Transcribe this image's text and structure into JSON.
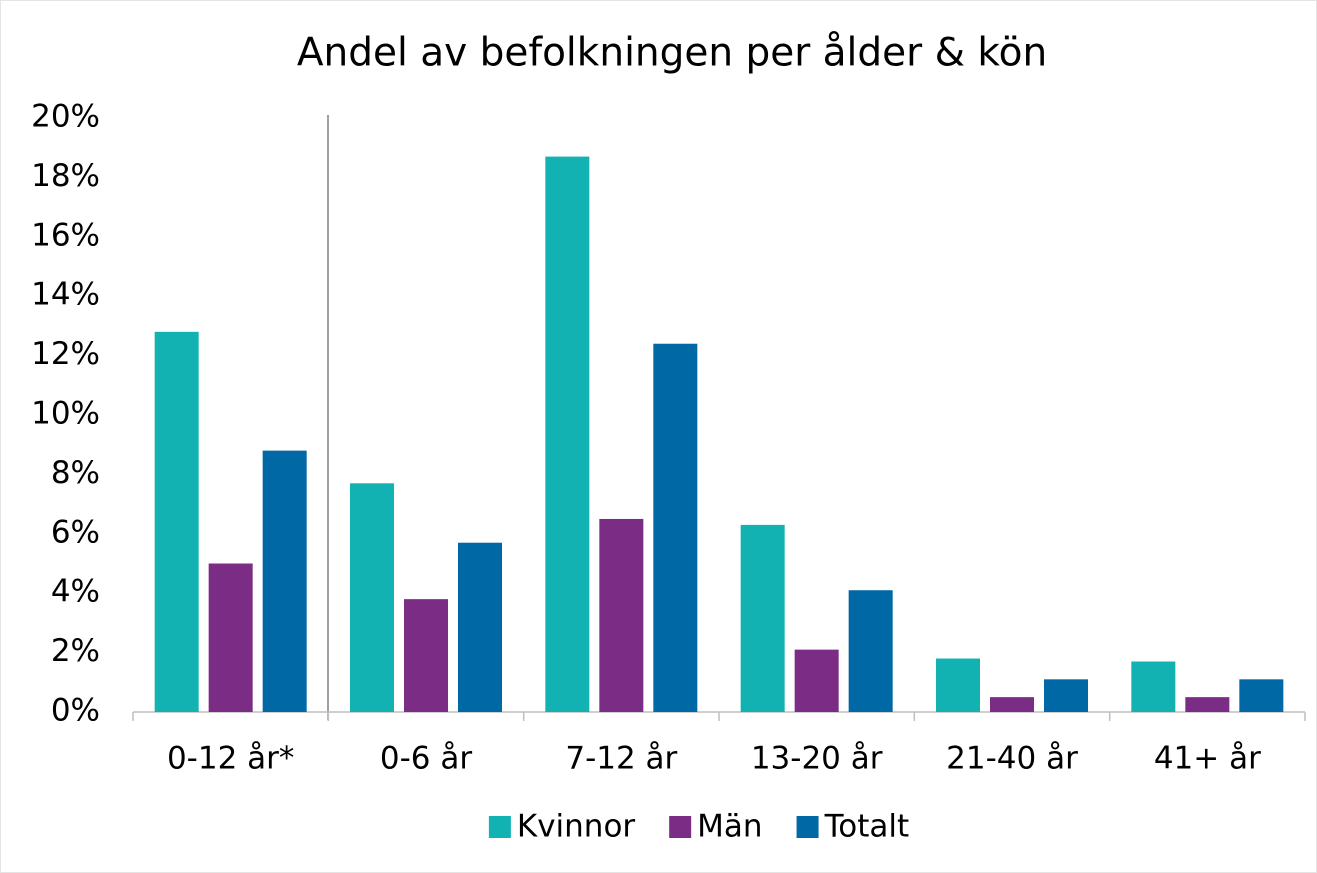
{
  "chart_data": {
    "type": "bar",
    "title": "Andel av befolkningen per ålder & kön",
    "categories": [
      "0-12 år*",
      "0-6 år",
      "7-12 år",
      "13-20 år",
      "21-40 år",
      "41+ år"
    ],
    "series": [
      {
        "name": "Kvinnor",
        "color": "#12b2b2",
        "values": [
          12.8,
          7.7,
          18.7,
          6.3,
          1.8,
          1.7
        ]
      },
      {
        "name": "Män",
        "color": "#7b2d86",
        "values": [
          5.0,
          3.8,
          6.5,
          2.1,
          0.5,
          0.5
        ]
      },
      {
        "name": "Totalt",
        "color": "#0068a5",
        "values": [
          8.8,
          5.7,
          12.4,
          4.1,
          1.1,
          1.1
        ]
      }
    ],
    "ylim": [
      0,
      20
    ],
    "yticks": [
      {
        "value": 0,
        "label": "0%"
      },
      {
        "value": 2,
        "label": "2%"
      },
      {
        "value": 4,
        "label": "4%"
      },
      {
        "value": 6,
        "label": "6%"
      },
      {
        "value": 8,
        "label": "8%"
      },
      {
        "value": 10,
        "label": "10%"
      },
      {
        "value": 12,
        "label": "12%"
      },
      {
        "value": 14,
        "label": "14%"
      },
      {
        "value": 16,
        "label": "16%"
      },
      {
        "value": 18,
        "label": "18%"
      },
      {
        "value": 20,
        "label": "20%"
      }
    ],
    "grid": false,
    "legend": "bottom"
  }
}
